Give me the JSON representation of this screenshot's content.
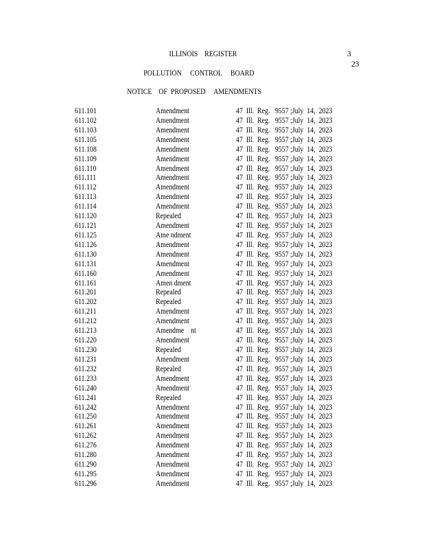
{
  "header": {
    "title": "ILLINOIS    REGISTER",
    "page_num_top": "3",
    "page_num_bottom": "23",
    "agency": "POLLUTION     CONTROL     BOARD",
    "notice": "NOTICE    OF  PROPOSED     AMENDMENTS"
  },
  "rows": [
    {
      "section": "611.101",
      "action": "Amendment",
      "citation": "47  Ill.  Reg.   9557 ;July  14,  2023"
    },
    {
      "section": "611.102",
      "action": "Amendment",
      "citation": "47  Ill.  Reg.   9557 ;July  14,  2023"
    },
    {
      "section": "611.103",
      "action": "Amendment",
      "citation": "47  Ill.  Reg.   9557 ;July  14,  2023"
    },
    {
      "section": "611.105",
      "action": "Amendment",
      "citation": "47  Ill.  Reg.   9557 ;July  14,  2023"
    },
    {
      "section": "611.108",
      "action": "Amendment",
      "citation": "47  Ill.  Reg.   9557 ;July  14,  2023"
    },
    {
      "section": "611.109",
      "action": "Amendment",
      "citation": "47  Ill.  Reg.   9557 ;July  14,  2023"
    },
    {
      "section": "611.110",
      "action": "Amendment",
      "citation": "47  Ill.  Reg.   9557 ;July  14,  2023"
    },
    {
      "section": "611.111",
      "action": "Amendment",
      "citation": "47  Ill.  Reg.   9557 ;July  14,  2023"
    },
    {
      "section": "611.112",
      "action": "Amendment",
      "citation": "47  Ill.  Reg.   9557 ;July  14,  2023"
    },
    {
      "section": "611.113",
      "action": "Amendment",
      "citation": "47  Ill.  Reg.   9557 ;July  14,  2023"
    },
    {
      "section": "611.114",
      "action": "Amendment",
      "citation": "47  Ill.  Reg.   9557 ;July  14,  2023"
    },
    {
      "section": "611.120",
      "action": "Repealed",
      "citation": "47  Ill.  Reg.   9557 ;July  14,  2023"
    },
    {
      "section": "611.121",
      "action": "Amendment",
      "citation": "47  Ill.  Reg.   9557 ;July  14,  2023"
    },
    {
      "section": "611.125",
      "action": "Ame ndment",
      "citation": "47  Ill.  Reg.   9557 ;July  14,  2023"
    },
    {
      "section": "611.126",
      "action": "Amendment",
      "citation": "47  Ill.  Reg.   9557 ;July  14,  2023"
    },
    {
      "section": "611.130",
      "action": "Amendment",
      "citation": "47  Ill.  Reg.   9557 ;July  14,  2023"
    },
    {
      "section": "611.131",
      "action": "Amendment",
      "citation": "47  Ill.  Reg.   9557 ;July  14,  2023"
    },
    {
      "section": "611.160",
      "action": "Amendment",
      "citation": "47  Ill.  Reg.   9557 ;July  14,  2023"
    },
    {
      "section": "611.161",
      "action": "Amen dment",
      "citation": "47  Ill.  Reg.   9557 ;July  14,  2023"
    },
    {
      "section": "611.201",
      "action": "Repealed",
      "citation": "47  Ill.  Reg.   9557 ;July  14,  2023"
    },
    {
      "section": "611.202",
      "action": "Repealed",
      "citation": "47  Ill.  Reg.   9557 ;July  14,  2023"
    },
    {
      "section": "611.211",
      "action": "Amendment",
      "citation": "47  Ill.  Reg.   9557 ;July  14,  2023"
    },
    {
      "section": "611.212",
      "action": "Amendment",
      "citation": "47  Ill.  Reg.   9557 ;July  14,  2023"
    },
    {
      "section": "611.213",
      "action": "Amendme    nt",
      "citation": "47  Ill.  Reg.   9557 ;July  14,  2023"
    },
    {
      "section": "611.220",
      "action": "Amendment",
      "citation": "47  Ill.  Reg.   9557 ;July  14,  2023"
    },
    {
      "section": "611.230",
      "action": "Repealed",
      "citation": "47  Ill.  Reg.   9557 ;July  14,  2023"
    },
    {
      "section": "611.231",
      "action": "Amendment",
      "citation": "47  Ill.  Reg.   9557 ;July  14,  2023"
    },
    {
      "section": "611.232",
      "action": "Repealed",
      "citation": "47  Ill.  Reg.   9557 ;July  14,  2023"
    },
    {
      "section": "611.233",
      "action": "Amendment",
      "citation": "47  Ill.  Reg.   9557 ;July  14,  2023"
    },
    {
      "section": "611.240",
      "action": "Amendment",
      "citation": "47  Ill.  Reg.   9557 ;July  14,  2023"
    },
    {
      "section": "611.241",
      "action": "Repealed",
      "citation": "47  Ill.  Reg.   9557 ;July  14,  2023"
    },
    {
      "section": "611.242",
      "action": "Amendment",
      "citation": "47  Ill.  Reg.   9557 ;July  14,  2023"
    },
    {
      "section": "611.250",
      "action": "Amendment",
      "citation": "47  Ill.  Reg.   9557 ;July  14,  2023"
    },
    {
      "section": "611.261",
      "action": "Amendment",
      "citation": "47  Ill.  Reg.   9557 ;July  14,  2023"
    },
    {
      "section": "611.262",
      "action": "Amendment",
      "citation": "47  Ill.  Reg.   9557 ;July  14,  2023"
    },
    {
      "section": "611.276",
      "action": "Amendment",
      "citation": "47  Ill.  Reg.   9557 ;July  14,  2023"
    },
    {
      "section": "611.280",
      "action": "Amendment",
      "citation": "47  Ill.  Reg.   9557 ;July  14,  2023"
    },
    {
      "section": "611.290",
      "action": "Amendment",
      "citation": "47  Ill.  Reg.   9557 ;July  14,  2023"
    },
    {
      "section": "611.295",
      "action": "Amendment",
      "citation": "47  Ill.  Reg.   9557 ;July  14,  2023"
    },
    {
      "section": "611.296",
      "action": "Amendment",
      "citation": "47  Ill.  Reg.   9557 ;July  14,  2023"
    }
  ]
}
